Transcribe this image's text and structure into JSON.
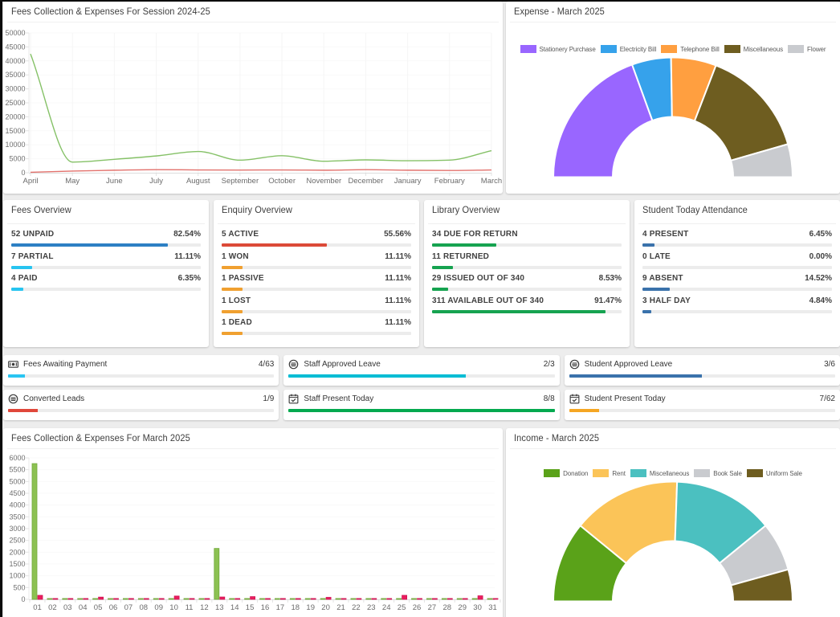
{
  "page": {
    "background": "#ededed",
    "window_edge_color": "#0b0b0b"
  },
  "cards": {
    "fees_session": {
      "title": "Fees Collection & Expenses For Session 2024-25"
    },
    "expense": {
      "title": "Expense - March 2025"
    },
    "fees_march": {
      "title": "Fees Collection & Expenses For March 2025"
    },
    "income": {
      "title": "Income - March 2025"
    }
  },
  "overview_cards": [
    {
      "title": "Fees Overview",
      "rows": [
        {
          "label": "52 UNPAID",
          "percent_text": "82.54%",
          "fill": 82.54,
          "color": "#2d80c4"
        },
        {
          "label": "7 PARTIAL",
          "percent_text": "11.11%",
          "fill": 11.11,
          "color": "#27c4f0"
        },
        {
          "label": "4 PAID",
          "percent_text": "6.35%",
          "fill": 6.35,
          "color": "#27c4f0"
        }
      ]
    },
    {
      "title": "Enquiry Overview",
      "rows": [
        {
          "label": "5 ACTIVE",
          "percent_text": "55.56%",
          "fill": 55.56,
          "color": "#dc4a38"
        },
        {
          "label": "1 WON",
          "percent_text": "11.11%",
          "fill": 11.11,
          "color": "#f0a030"
        },
        {
          "label": "1 PASSIVE",
          "percent_text": "11.11%",
          "fill": 11.11,
          "color": "#f0a030"
        },
        {
          "label": "1 LOST",
          "percent_text": "11.11%",
          "fill": 11.11,
          "color": "#f0a030"
        },
        {
          "label": "1 DEAD",
          "percent_text": "11.11%",
          "fill": 11.11,
          "color": "#f0a030"
        }
      ]
    },
    {
      "title": "Library Overview",
      "rows": [
        {
          "label": "34 DUE FOR RETURN",
          "percent_text": "",
          "fill": 34,
          "color": "#16a350"
        },
        {
          "label": "11 RETURNED",
          "percent_text": "",
          "fill": 11,
          "color": "#16a350"
        },
        {
          "label": "29 ISSUED OUT OF 340",
          "percent_text": "8.53%",
          "fill": 8.53,
          "color": "#16a350"
        },
        {
          "label": "311 AVAILABLE OUT OF 340",
          "percent_text": "91.47%",
          "fill": 91.47,
          "color": "#16a350"
        }
      ]
    },
    {
      "title": "Student Today Attendance",
      "rows": [
        {
          "label": "4 PRESENT",
          "percent_text": "6.45%",
          "fill": 6.45,
          "color": "#3a72ab"
        },
        {
          "label": "0 LATE",
          "percent_text": "0.00%",
          "fill": 0,
          "color": "#3a72ab"
        },
        {
          "label": "9 ABSENT",
          "percent_text": "14.52%",
          "fill": 14.52,
          "color": "#3a72ab"
        },
        {
          "label": "3 HALF DAY",
          "percent_text": "4.84%",
          "fill": 4.84,
          "color": "#3a72ab"
        }
      ]
    }
  ],
  "stat_cards": [
    {
      "label": "Fees Awaiting Payment",
      "value": "4/63",
      "fill": 6.35,
      "color": "#29c5f2",
      "icon": "money-icon"
    },
    {
      "label": "Staff Approved Leave",
      "value": "2/3",
      "fill": 66.67,
      "color": "#00bcd4",
      "icon": "leave-icon"
    },
    {
      "label": "Student Approved Leave",
      "value": "3/6",
      "fill": 50,
      "color": "#3a72ab",
      "icon": "leave-icon"
    },
    {
      "label": "Converted Leads",
      "value": "1/9",
      "fill": 11.11,
      "color": "#e0473a",
      "icon": "leave-icon"
    },
    {
      "label": "Staff Present Today",
      "value": "8/8",
      "fill": 100,
      "color": "#04a94f",
      "icon": "calendar-check-icon"
    },
    {
      "label": "Student Present Today",
      "value": "7/62",
      "fill": 11.29,
      "color": "#f5a623",
      "icon": "calendar-check-icon"
    }
  ],
  "chart_data": [
    {
      "id": "fees_session_line",
      "type": "line",
      "title": "Fees Collection & Expenses For Session 2024-25",
      "x": [
        "April",
        "May",
        "June",
        "July",
        "August",
        "September",
        "October",
        "November",
        "December",
        "January",
        "February",
        "March"
      ],
      "series": [
        {
          "name": "Fees Collection",
          "color": "#85c167",
          "values": [
            42500,
            3800,
            4800,
            6000,
            7600,
            4500,
            6100,
            4100,
            4600,
            4300,
            4500,
            7900
          ]
        },
        {
          "name": "Expenses",
          "color": "#e2716c",
          "values": [
            150,
            600,
            900,
            1100,
            1000,
            950,
            1000,
            900,
            1100,
            900,
            800,
            1000
          ]
        }
      ],
      "ylim": [
        0,
        50000
      ],
      "ytick": 5000,
      "grid": true,
      "legend_position": "none"
    },
    {
      "id": "expense_donut",
      "type": "pie",
      "subtype": "half-doughnut",
      "title": "Expense - March 2025",
      "labels": [
        "Stationery Purchase",
        "Electricity Bill",
        "Telephone Bill",
        "Miscellaneous",
        "Flower"
      ],
      "colors": [
        "#9966ff",
        "#36a2eb",
        "#ff9f40",
        "#6e5d20",
        "#c9cbcf"
      ],
      "values_pct": [
        38.9,
        10.6,
        12.2,
        29.4,
        8.9
      ],
      "legend_position": "top"
    },
    {
      "id": "fees_march_bar",
      "type": "bar",
      "title": "Fees Collection & Expenses For March 2025",
      "categories": [
        "01",
        "02",
        "03",
        "04",
        "05",
        "06",
        "07",
        "08",
        "09",
        "10",
        "11",
        "12",
        "13",
        "14",
        "15",
        "16",
        "17",
        "18",
        "19",
        "20",
        "21",
        "22",
        "23",
        "24",
        "25",
        "26",
        "27",
        "28",
        "29",
        "30",
        "31"
      ],
      "series": [
        {
          "name": "Fees Collection",
          "fill": "#8cc152",
          "border": "#72a93c",
          "values": [
            5760,
            35,
            35,
            35,
            35,
            35,
            35,
            35,
            35,
            35,
            35,
            35,
            2160,
            35,
            35,
            35,
            35,
            35,
            35,
            35,
            35,
            35,
            35,
            35,
            35,
            35,
            35,
            35,
            35,
            35,
            35
          ]
        },
        {
          "name": "Expenses",
          "fill": "#ea1e5e",
          "border": "#d01353",
          "values": [
            170,
            35,
            35,
            35,
            95,
            35,
            35,
            35,
            35,
            140,
            35,
            35,
            100,
            35,
            115,
            35,
            35,
            35,
            35,
            85,
            35,
            35,
            35,
            35,
            170,
            35,
            35,
            35,
            35,
            150,
            35
          ]
        }
      ],
      "ylim": [
        0,
        6000
      ],
      "ytick": 500,
      "grid": true,
      "legend_position": "none"
    },
    {
      "id": "income_donut",
      "type": "pie",
      "subtype": "half-doughnut",
      "title": "Income - March 2025",
      "labels": [
        "Donation",
        "Rent",
        "Miscellaneous",
        "Book Sale",
        "Uniform Sale"
      ],
      "colors": [
        "#5aa219",
        "#fbc458",
        "#4bc0c0",
        "#c9cbcf",
        "#6e5d20"
      ],
      "values_pct": [
        21.8,
        29.3,
        27.1,
        13.2,
        8.6
      ],
      "legend_position": "top"
    }
  ]
}
